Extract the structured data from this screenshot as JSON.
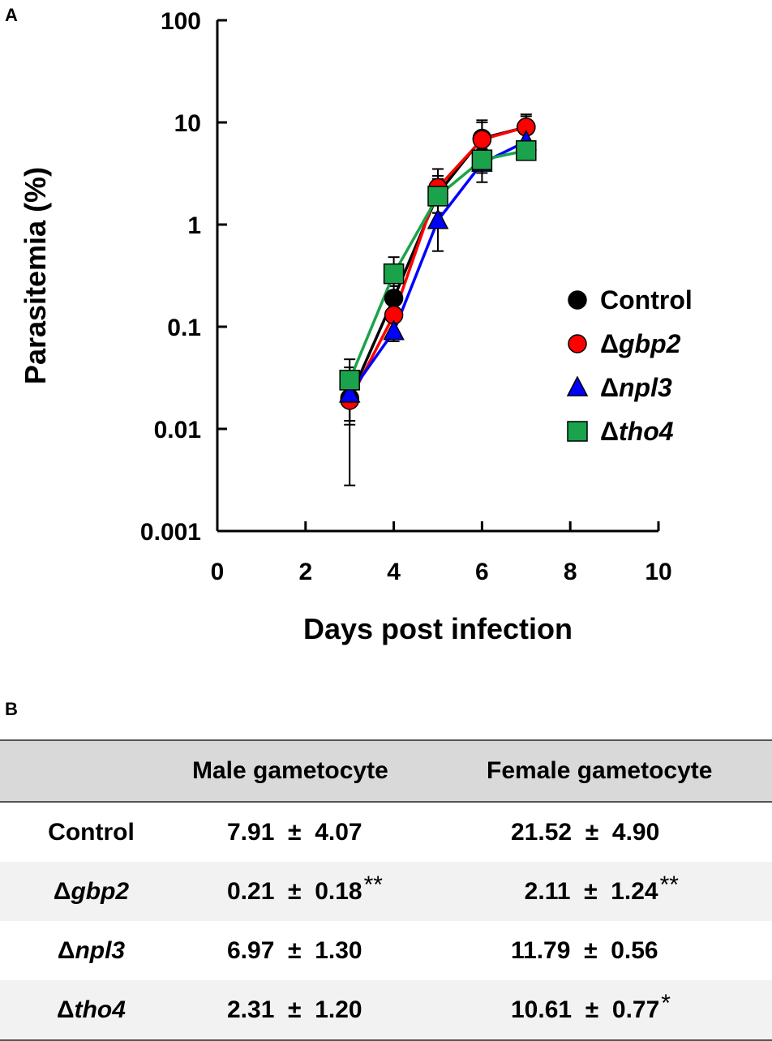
{
  "panels": {
    "a": "A",
    "b": "B"
  },
  "chart_data": {
    "type": "line",
    "yscale": "log",
    "title": "",
    "xlabel": "Days post infection",
    "ylabel": "Parasitemia (%)",
    "xlim": [
      0,
      10
    ],
    "ylim": [
      0.001,
      100
    ],
    "xticks": [
      "0",
      "2",
      "4",
      "6",
      "8",
      "10"
    ],
    "yticks": [
      "0.001",
      "0.01",
      "0.1",
      "1",
      "10",
      "100"
    ],
    "x": [
      3,
      4,
      5,
      6,
      7
    ],
    "series": [
      {
        "name": "Control",
        "prefix": "",
        "gene": "Control",
        "marker": "circle",
        "color": "#000000",
        "values": [
          0.02,
          0.19,
          2.0,
          7.0,
          9.0
        ],
        "err_lo": [
          0.0028,
          0.15,
          1.3,
          3.5,
          6.0
        ],
        "err_hi": [
          0.04,
          0.25,
          3.0,
          10.0,
          12.0
        ]
      },
      {
        "name": "Δgbp2",
        "prefix": "Δ",
        "gene": "gbp2",
        "marker": "circle",
        "color": "#ff0000",
        "values": [
          0.019,
          0.13,
          2.3,
          6.8,
          9.0
        ],
        "err_lo": [
          0.011,
          0.08,
          1.6,
          4.0,
          6.5
        ],
        "err_hi": [
          0.03,
          0.2,
          3.5,
          10.5,
          11.5
        ]
      },
      {
        "name": "Δnpl3",
        "prefix": "Δ",
        "gene": "npl3",
        "marker": "triangle",
        "color": "#0000ff",
        "values": [
          0.022,
          0.09,
          1.1,
          4.0,
          6.5
        ],
        "err_lo": [
          0.012,
          0.072,
          0.55,
          2.6,
          5.0
        ],
        "err_hi": [
          0.035,
          0.12,
          2.0,
          6.0,
          8.0
        ]
      },
      {
        "name": "Δtho4",
        "prefix": "Δ",
        "gene": "tho4",
        "marker": "square",
        "color": "#1aa34a",
        "values": [
          0.03,
          0.33,
          1.9,
          4.3,
          5.3
        ],
        "err_lo": [
          0.02,
          0.25,
          1.3,
          3.2,
          4.5
        ],
        "err_hi": [
          0.048,
          0.48,
          2.8,
          5.5,
          6.5
        ]
      }
    ]
  },
  "table": {
    "headers": [
      "",
      "Male gametocyte",
      "Female gametocyte"
    ],
    "rows": [
      {
        "prefix": "",
        "gene": "Control",
        "male": "7.91  ±  4.07",
        "male_sig": "",
        "female": "21.52  ±  4.90",
        "female_sig": ""
      },
      {
        "prefix": "Δ",
        "gene": "gbp2",
        "male": "0.21  ±  0.18",
        "male_sig": "**",
        "female": "  2.11  ±  1.24",
        "female_sig": "**"
      },
      {
        "prefix": "Δ",
        "gene": "npl3",
        "male": "6.97  ±  1.30",
        "male_sig": "",
        "female": "11.79  ±  0.56",
        "female_sig": ""
      },
      {
        "prefix": "Δ",
        "gene": "tho4",
        "male": "2.31  ±  1.20",
        "male_sig": "",
        "female": "10.61  ±  0.77",
        "female_sig": "*"
      }
    ]
  }
}
